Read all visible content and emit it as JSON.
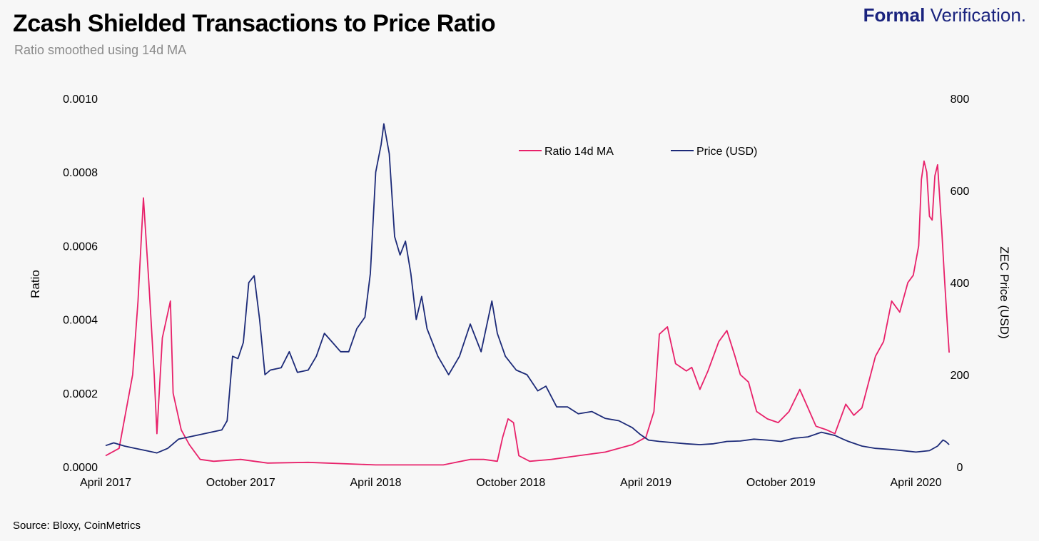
{
  "header": {
    "title": "Zcash Shielded Transactions to Price Ratio",
    "subtitle": "Ratio smoothed using 14d MA",
    "brand_strong": "Formal",
    "brand_light": "Verification."
  },
  "footer": {
    "source": "Source: Bloxy, CoinMetrics"
  },
  "colors": {
    "ratio": "#e8216a",
    "price": "#1c2a78",
    "background": "#f7f7f7"
  },
  "chart_data": {
    "type": "line",
    "title": "Zcash Shielded Transactions to Price Ratio",
    "subtitle": "Ratio smoothed using 14d MA",
    "ylabel_left": "Ratio",
    "ylabel_right": "ZEC Price (USD)",
    "y_left_range": [
      0,
      0.001
    ],
    "y_right_range": [
      0,
      800
    ],
    "x_range": [
      2017.25,
      2020.333
    ],
    "y_left_ticks": [
      "0.0000",
      "0.0002",
      "0.0004",
      "0.0006",
      "0.0008",
      "0.0010"
    ],
    "y_left_tick_values": [
      0,
      0.0002,
      0.0004,
      0.0006,
      0.0008,
      0.001
    ],
    "y_right_ticks": [
      "0",
      "200",
      "400",
      "600",
      "800"
    ],
    "y_right_tick_values": [
      0,
      200,
      400,
      600,
      800
    ],
    "x_ticks": [
      "April 2017",
      "October 2017",
      "April 2018",
      "October 2018",
      "April 2019",
      "October 2019",
      "April 2020"
    ],
    "x_tick_values": [
      2017.25,
      2017.75,
      2018.25,
      2018.75,
      2019.25,
      2019.75,
      2020.25
    ],
    "legend_position": "top-center",
    "grid": false,
    "series": [
      {
        "name": "Ratio 14d MA",
        "axis": "left",
        "points": [
          [
            2017.25,
            3e-05
          ],
          [
            2017.3,
            5e-05
          ],
          [
            2017.35,
            0.00025
          ],
          [
            2017.37,
            0.00045
          ],
          [
            2017.39,
            0.00073
          ],
          [
            2017.41,
            0.0005
          ],
          [
            2017.43,
            0.00025
          ],
          [
            2017.44,
            9e-05
          ],
          [
            2017.46,
            0.00035
          ],
          [
            2017.49,
            0.00045
          ],
          [
            2017.5,
            0.0002
          ],
          [
            2017.53,
            0.0001
          ],
          [
            2017.56,
            6e-05
          ],
          [
            2017.6,
            2e-05
          ],
          [
            2017.65,
            1.5e-05
          ],
          [
            2017.75,
            2e-05
          ],
          [
            2017.85,
            1e-05
          ],
          [
            2018.0,
            1.2e-05
          ],
          [
            2018.25,
            5e-06
          ],
          [
            2018.5,
            5e-06
          ],
          [
            2018.6,
            2e-05
          ],
          [
            2018.65,
            2e-05
          ],
          [
            2018.7,
            1.5e-05
          ],
          [
            2018.72,
            8e-05
          ],
          [
            2018.74,
            0.00013
          ],
          [
            2018.76,
            0.00012
          ],
          [
            2018.78,
            3e-05
          ],
          [
            2018.82,
            1.5e-05
          ],
          [
            2018.9,
            2e-05
          ],
          [
            2019.0,
            3e-05
          ],
          [
            2019.1,
            4e-05
          ],
          [
            2019.2,
            6e-05
          ],
          [
            2019.25,
            8e-05
          ],
          [
            2019.28,
            0.00015
          ],
          [
            2019.3,
            0.00036
          ],
          [
            2019.33,
            0.00038
          ],
          [
            2019.36,
            0.00028
          ],
          [
            2019.4,
            0.00026
          ],
          [
            2019.42,
            0.00027
          ],
          [
            2019.45,
            0.00021
          ],
          [
            2019.48,
            0.00026
          ],
          [
            2019.52,
            0.00034
          ],
          [
            2019.55,
            0.00037
          ],
          [
            2019.58,
            0.0003
          ],
          [
            2019.6,
            0.00025
          ],
          [
            2019.63,
            0.00023
          ],
          [
            2019.66,
            0.00015
          ],
          [
            2019.7,
            0.00013
          ],
          [
            2019.74,
            0.00012
          ],
          [
            2019.78,
            0.00015
          ],
          [
            2019.82,
            0.00021
          ],
          [
            2019.85,
            0.00016
          ],
          [
            2019.88,
            0.00011
          ],
          [
            2019.92,
            0.0001
          ],
          [
            2019.95,
            9e-05
          ],
          [
            2019.99,
            0.00017
          ],
          [
            2020.02,
            0.00014
          ],
          [
            2020.05,
            0.00016
          ],
          [
            2020.1,
            0.0003
          ],
          [
            2020.13,
            0.00034
          ],
          [
            2020.16,
            0.00045
          ],
          [
            2020.19,
            0.00042
          ],
          [
            2020.22,
            0.0005
          ],
          [
            2020.24,
            0.00052
          ],
          [
            2020.26,
            0.0006
          ],
          [
            2020.27,
            0.00078
          ],
          [
            2020.28,
            0.00083
          ],
          [
            2020.29,
            0.0008
          ],
          [
            2020.3,
            0.00068
          ],
          [
            2020.31,
            0.00067
          ],
          [
            2020.32,
            0.00079
          ],
          [
            2020.33,
            0.00082
          ],
          [
            2020.345,
            0.00065
          ],
          [
            2020.355,
            0.00052
          ],
          [
            2020.365,
            0.0004
          ],
          [
            2020.373,
            0.00031
          ]
        ]
      },
      {
        "name": "Price (USD)",
        "axis": "right",
        "points": [
          [
            2017.25,
            46
          ],
          [
            2017.28,
            52
          ],
          [
            2017.32,
            45
          ],
          [
            2017.36,
            40
          ],
          [
            2017.4,
            35
          ],
          [
            2017.44,
            30
          ],
          [
            2017.48,
            40
          ],
          [
            2017.52,
            60
          ],
          [
            2017.56,
            65
          ],
          [
            2017.6,
            70
          ],
          [
            2017.64,
            75
          ],
          [
            2017.68,
            80
          ],
          [
            2017.7,
            100
          ],
          [
            2017.72,
            240
          ],
          [
            2017.74,
            235
          ],
          [
            2017.76,
            270
          ],
          [
            2017.78,
            400
          ],
          [
            2017.8,
            415
          ],
          [
            2017.82,
            320
          ],
          [
            2017.84,
            200
          ],
          [
            2017.86,
            210
          ],
          [
            2017.9,
            215
          ],
          [
            2017.93,
            250
          ],
          [
            2017.96,
            205
          ],
          [
            2018.0,
            210
          ],
          [
            2018.03,
            240
          ],
          [
            2018.06,
            290
          ],
          [
            2018.09,
            270
          ],
          [
            2018.12,
            250
          ],
          [
            2018.15,
            250
          ],
          [
            2018.18,
            300
          ],
          [
            2018.21,
            325
          ],
          [
            2018.23,
            420
          ],
          [
            2018.25,
            640
          ],
          [
            2018.27,
            700
          ],
          [
            2018.28,
            745
          ],
          [
            2018.3,
            680
          ],
          [
            2018.32,
            500
          ],
          [
            2018.34,
            460
          ],
          [
            2018.36,
            490
          ],
          [
            2018.38,
            420
          ],
          [
            2018.4,
            320
          ],
          [
            2018.42,
            370
          ],
          [
            2018.44,
            300
          ],
          [
            2018.48,
            240
          ],
          [
            2018.52,
            200
          ],
          [
            2018.56,
            240
          ],
          [
            2018.6,
            310
          ],
          [
            2018.64,
            250
          ],
          [
            2018.68,
            360
          ],
          [
            2018.7,
            290
          ],
          [
            2018.73,
            240
          ],
          [
            2018.77,
            210
          ],
          [
            2018.81,
            200
          ],
          [
            2018.85,
            165
          ],
          [
            2018.88,
            175
          ],
          [
            2018.92,
            130
          ],
          [
            2018.96,
            130
          ],
          [
            2019.0,
            115
          ],
          [
            2019.05,
            120
          ],
          [
            2019.1,
            105
          ],
          [
            2019.15,
            100
          ],
          [
            2019.2,
            85
          ],
          [
            2019.23,
            70
          ],
          [
            2019.26,
            58
          ],
          [
            2019.3,
            55
          ],
          [
            2019.4,
            50
          ],
          [
            2019.45,
            48
          ],
          [
            2019.5,
            50
          ],
          [
            2019.55,
            55
          ],
          [
            2019.6,
            56
          ],
          [
            2019.65,
            60
          ],
          [
            2019.7,
            58
          ],
          [
            2019.75,
            55
          ],
          [
            2019.8,
            62
          ],
          [
            2019.85,
            65
          ],
          [
            2019.9,
            75
          ],
          [
            2019.95,
            68
          ],
          [
            2019.98,
            60
          ],
          [
            2020.0,
            55
          ],
          [
            2020.05,
            45
          ],
          [
            2020.1,
            40
          ],
          [
            2020.15,
            38
          ],
          [
            2020.2,
            35
          ],
          [
            2020.25,
            32
          ],
          [
            2020.3,
            35
          ],
          [
            2020.33,
            45
          ],
          [
            2020.35,
            58
          ],
          [
            2020.36,
            55
          ],
          [
            2020.373,
            48
          ]
        ]
      }
    ]
  }
}
